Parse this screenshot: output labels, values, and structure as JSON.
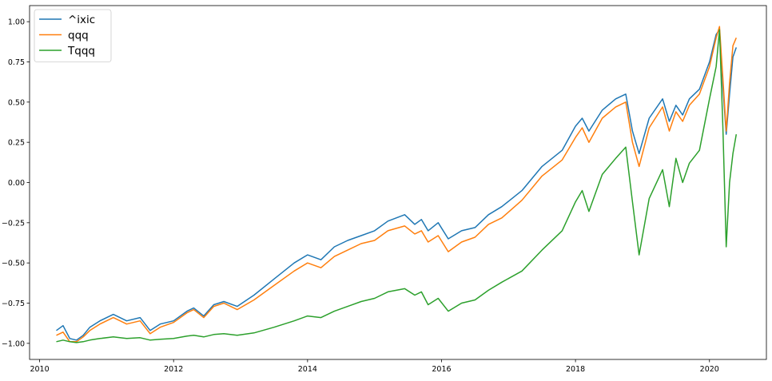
{
  "chart_data": {
    "type": "line",
    "title": "",
    "xlabel": "",
    "ylabel": "",
    "xlim": [
      2009.85,
      2020.85
    ],
    "ylim": [
      -1.1,
      1.1
    ],
    "x_ticks": [
      2010,
      2012,
      2014,
      2016,
      2018,
      2020
    ],
    "x_tick_labels": [
      "2010",
      "2012",
      "2014",
      "2016",
      "2018",
      "2020"
    ],
    "y_ticks": [
      1.0,
      0.75,
      0.5,
      0.25,
      0.0,
      -0.25,
      -0.5,
      -0.75,
      -1.0
    ],
    "y_tick_labels": [
      "1.00",
      "0.75",
      "0.50",
      "0.25",
      "0.00",
      "−0.25",
      "−0.50",
      "−0.75",
      "−1.00"
    ],
    "grid": false,
    "legend_position": "top-left",
    "series": [
      {
        "name": "^ixic",
        "color": "#1f77b4",
        "x": [
          2010.25,
          2010.35,
          2010.45,
          2010.55,
          2010.65,
          2010.75,
          2010.9,
          2011.1,
          2011.3,
          2011.5,
          2011.65,
          2011.8,
          2012.0,
          2012.2,
          2012.3,
          2012.45,
          2012.6,
          2012.75,
          2012.95,
          2013.2,
          2013.5,
          2013.8,
          2014.0,
          2014.2,
          2014.4,
          2014.6,
          2014.8,
          2015.0,
          2015.2,
          2015.45,
          2015.6,
          2015.7,
          2015.8,
          2015.95,
          2016.1,
          2016.3,
          2016.5,
          2016.7,
          2016.9,
          2017.2,
          2017.5,
          2017.8,
          2018.0,
          2018.1,
          2018.2,
          2018.4,
          2018.6,
          2018.75,
          2018.85,
          2018.95,
          2019.1,
          2019.3,
          2019.4,
          2019.5,
          2019.6,
          2019.7,
          2019.85,
          2020.0,
          2020.1,
          2020.15,
          2020.2,
          2020.25,
          2020.3,
          2020.35,
          2020.4
        ],
        "y": [
          -0.92,
          -0.89,
          -0.97,
          -0.98,
          -0.95,
          -0.9,
          -0.86,
          -0.82,
          -0.86,
          -0.84,
          -0.92,
          -0.88,
          -0.86,
          -0.8,
          -0.78,
          -0.83,
          -0.76,
          -0.74,
          -0.77,
          -0.7,
          -0.6,
          -0.5,
          -0.45,
          -0.48,
          -0.4,
          -0.36,
          -0.33,
          -0.3,
          -0.24,
          -0.2,
          -0.26,
          -0.23,
          -0.3,
          -0.25,
          -0.35,
          -0.3,
          -0.28,
          -0.2,
          -0.15,
          -0.05,
          0.1,
          0.2,
          0.35,
          0.4,
          0.32,
          0.45,
          0.52,
          0.55,
          0.32,
          0.18,
          0.4,
          0.52,
          0.38,
          0.48,
          0.42,
          0.52,
          0.58,
          0.75,
          0.92,
          0.95,
          0.6,
          0.3,
          0.55,
          0.78,
          0.84
        ]
      },
      {
        "name": "qqq",
        "color": "#ff7f0e",
        "x": [
          2010.25,
          2010.35,
          2010.45,
          2010.55,
          2010.65,
          2010.75,
          2010.9,
          2011.1,
          2011.3,
          2011.5,
          2011.65,
          2011.8,
          2012.0,
          2012.2,
          2012.3,
          2012.45,
          2012.6,
          2012.75,
          2012.95,
          2013.2,
          2013.5,
          2013.8,
          2014.0,
          2014.2,
          2014.4,
          2014.6,
          2014.8,
          2015.0,
          2015.2,
          2015.45,
          2015.6,
          2015.7,
          2015.8,
          2015.95,
          2016.1,
          2016.3,
          2016.5,
          2016.7,
          2016.9,
          2017.2,
          2017.5,
          2017.8,
          2018.0,
          2018.1,
          2018.2,
          2018.4,
          2018.6,
          2018.75,
          2018.85,
          2018.95,
          2019.1,
          2019.3,
          2019.4,
          2019.5,
          2019.6,
          2019.7,
          2019.85,
          2020.0,
          2020.1,
          2020.15,
          2020.2,
          2020.25,
          2020.3,
          2020.35,
          2020.4
        ],
        "y": [
          -0.95,
          -0.93,
          -0.99,
          -0.99,
          -0.96,
          -0.92,
          -0.88,
          -0.84,
          -0.88,
          -0.86,
          -0.94,
          -0.9,
          -0.87,
          -0.81,
          -0.79,
          -0.84,
          -0.77,
          -0.75,
          -0.79,
          -0.73,
          -0.64,
          -0.55,
          -0.5,
          -0.53,
          -0.46,
          -0.42,
          -0.38,
          -0.36,
          -0.3,
          -0.27,
          -0.32,
          -0.3,
          -0.37,
          -0.33,
          -0.43,
          -0.37,
          -0.34,
          -0.26,
          -0.22,
          -0.11,
          0.04,
          0.14,
          0.28,
          0.34,
          0.25,
          0.4,
          0.47,
          0.5,
          0.25,
          0.1,
          0.34,
          0.47,
          0.32,
          0.44,
          0.38,
          0.48,
          0.55,
          0.72,
          0.9,
          0.97,
          0.65,
          0.32,
          0.62,
          0.85,
          0.9
        ]
      },
      {
        "name": "Tqqq",
        "color": "#2ca02c",
        "x": [
          2010.25,
          2010.35,
          2010.45,
          2010.55,
          2010.65,
          2010.75,
          2010.9,
          2011.1,
          2011.3,
          2011.5,
          2011.65,
          2011.8,
          2012.0,
          2012.2,
          2012.3,
          2012.45,
          2012.6,
          2012.75,
          2012.95,
          2013.2,
          2013.5,
          2013.8,
          2014.0,
          2014.2,
          2014.4,
          2014.6,
          2014.8,
          2015.0,
          2015.2,
          2015.45,
          2015.6,
          2015.7,
          2015.8,
          2015.95,
          2016.1,
          2016.3,
          2016.5,
          2016.7,
          2016.9,
          2017.2,
          2017.5,
          2017.8,
          2018.0,
          2018.1,
          2018.2,
          2018.4,
          2018.6,
          2018.75,
          2018.85,
          2018.95,
          2019.1,
          2019.3,
          2019.4,
          2019.5,
          2019.6,
          2019.7,
          2019.85,
          2020.0,
          2020.1,
          2020.15,
          2020.2,
          2020.25,
          2020.3,
          2020.35,
          2020.4
        ],
        "y": [
          -0.99,
          -0.98,
          -0.99,
          -0.995,
          -0.99,
          -0.98,
          -0.97,
          -0.96,
          -0.97,
          -0.965,
          -0.98,
          -0.975,
          -0.97,
          -0.955,
          -0.95,
          -0.96,
          -0.945,
          -0.94,
          -0.95,
          -0.935,
          -0.9,
          -0.86,
          -0.83,
          -0.84,
          -0.8,
          -0.77,
          -0.74,
          -0.72,
          -0.68,
          -0.66,
          -0.7,
          -0.68,
          -0.76,
          -0.72,
          -0.8,
          -0.75,
          -0.73,
          -0.67,
          -0.62,
          -0.55,
          -0.42,
          -0.3,
          -0.12,
          -0.05,
          -0.18,
          0.05,
          0.15,
          0.22,
          -0.12,
          -0.45,
          -0.1,
          0.08,
          -0.15,
          0.15,
          0.0,
          0.12,
          0.2,
          0.52,
          0.72,
          0.95,
          0.35,
          -0.4,
          0.0,
          0.18,
          0.3
        ]
      }
    ]
  }
}
